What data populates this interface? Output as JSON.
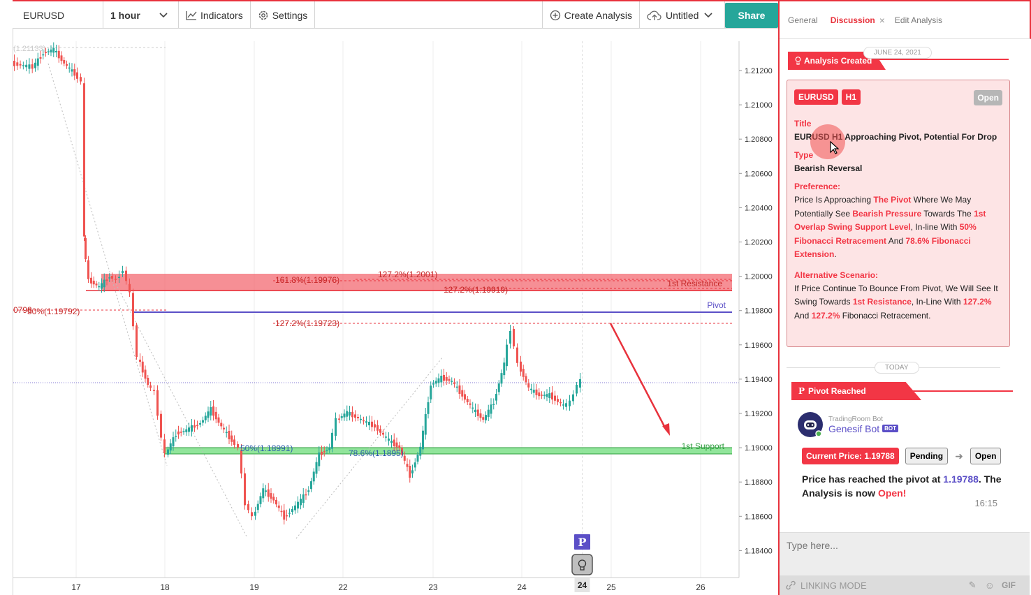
{
  "toolbar": {
    "symbol": "EURUSD",
    "interval": "1 hour",
    "indicators": "Indicators",
    "settings": "Settings",
    "create_analysis": "Create Analysis",
    "untitled": "Untitled",
    "share": "Share"
  },
  "chart_data": {
    "type": "candlestick",
    "y_ticks": [
      "1.21200",
      "1.21000",
      "1.20800",
      "1.20600",
      "1.20400",
      "1.20200",
      "1.20000",
      "1.19800",
      "1.19600",
      "1.19400",
      "1.19200",
      "1.19000",
      "1.18800",
      "1.18600",
      "1.18400"
    ],
    "x_ticks": [
      "17",
      "18",
      "19",
      "22",
      "23",
      "24",
      "25",
      "26"
    ],
    "x_highlight": "24",
    "top_left_label": "(1.21133)",
    "annotations": {
      "fib_1618": "161.8%(1.19976)",
      "fib_1272_a": "127.2%(1.2001)",
      "fib_1272_b": "127.2%(1.19919)",
      "fib_1272_c": "127.2%(1.19723)",
      "fib_50_left": "50%(1.19792)",
      "left_cut": "0798",
      "fib_50_low": "50%(1.18991)",
      "fib_786": "78.6%(1.1895)",
      "resistance": "1st Resistance",
      "pivot": "Pivot",
      "support": "1st Support"
    },
    "marker_p": "P",
    "colors": {
      "up": "#26a69a",
      "down": "#ef5350",
      "resistance": "#f23645",
      "support": "#4caf50",
      "pivot": "#5b4fc7"
    }
  },
  "panel": {
    "tabs": [
      "General",
      "Discussion",
      "Edit Analysis"
    ],
    "tab_close": "×",
    "date1": "JUNE 24, 2021",
    "ribbon1": "Analysis Created",
    "card": {
      "chip_symbol": "EURUSD",
      "chip_tf": "H1",
      "status": "Open",
      "title_label": "Title",
      "title": "EURUSD H1 Approaching Pivot, Potential For Drop",
      "type_label": "Type",
      "type": "Bearish Reversal",
      "pref_label": "Preference:",
      "p1": "Price Is Approaching ",
      "p2": "The Pivot",
      "p3": " Where We May Potentially See ",
      "p4": "Bearish Pressure",
      "p5": " Towards The ",
      "p6": "1st Overlap Swing Support Level",
      "p7": ", In-line With ",
      "p8": "50% Fibonacci Retracement",
      "p9": " And ",
      "p10": "78.6% Fibonacci Extension",
      "p11": ".",
      "alt_label": "Alternative Scenario:",
      "a1": "If Price Continue To Bounce From Pivot, We Will See It Swing Towards ",
      "a2": "1st Resistance",
      "a3": ", In-Line With ",
      "a4": "127.2%",
      "a5": " And ",
      "a6": "127.2%",
      "a7": " Fibonacci Retracement."
    },
    "date2": "TODAY",
    "ribbon2": "Pivot Reached",
    "bot_sub": "TradingRoom Bot",
    "bot_name": "Genesif Bot",
    "bot_badge": "BOT",
    "current_price": "Current Price: 1.19788",
    "pending": "Pending",
    "open": "Open",
    "msg1": "Price has reached the pivot at ",
    "msg_price": "1.19788",
    "msg2": ". The Analysis is now ",
    "msg_open": "Open!",
    "time": "16:15",
    "input_placeholder": "Type here...",
    "linking": "LINKING MODE",
    "gif": "GIF"
  }
}
